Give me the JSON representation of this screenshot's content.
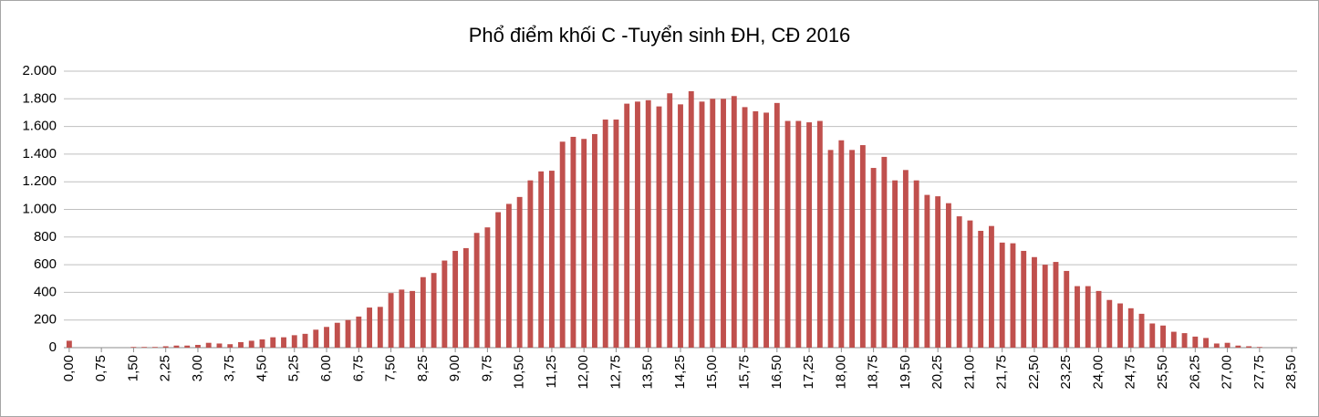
{
  "chart_data": {
    "type": "bar",
    "title": "Phổ điểm khối C -Tuyển sinh ĐH, CĐ 2016",
    "color": "#c0504d",
    "grid": true,
    "ylim": [
      0,
      2000
    ],
    "yticks": [
      0,
      200,
      400,
      600,
      800,
      {
        "value": 1000,
        "label": "1.000"
      },
      {
        "value": 1200,
        "label": "1.200"
      },
      {
        "value": 1400,
        "label": "1.400"
      },
      {
        "value": 1600,
        "label": "1.600"
      },
      {
        "value": 1800,
        "label": "1.800"
      },
      {
        "value": 2000,
        "label": "2.000"
      }
    ],
    "categories": [
      "0,00",
      null,
      null,
      "0,75",
      null,
      null,
      "1,50",
      null,
      null,
      "2,25",
      null,
      null,
      "3,00",
      null,
      null,
      "3,75",
      null,
      null,
      "4,50",
      null,
      null,
      "5,25",
      null,
      null,
      "6,00",
      null,
      null,
      "6,75",
      null,
      null,
      "7,50",
      null,
      null,
      "8,25",
      null,
      null,
      "9,00",
      null,
      null,
      "9,75",
      null,
      null,
      "10,50",
      null,
      null,
      "11,25",
      null,
      null,
      "12,00",
      null,
      null,
      "12,75",
      null,
      null,
      "13,50",
      null,
      null,
      "14,25",
      null,
      null,
      "15,00",
      null,
      null,
      "15,75",
      null,
      null,
      "16,50",
      null,
      null,
      "17,25",
      null,
      null,
      "18,00",
      null,
      null,
      "18,75",
      null,
      null,
      "19,50",
      null,
      null,
      "20,25",
      null,
      null,
      "21,00",
      null,
      null,
      "21,75",
      null,
      null,
      "22,50",
      null,
      null,
      "23,25",
      null,
      null,
      "24,00",
      null,
      null,
      "24,75",
      null,
      null,
      "25,50",
      null,
      null,
      "26,25",
      null,
      null,
      "27,00",
      null,
      null,
      "27,75",
      null,
      null,
      "28,50"
    ],
    "values": [
      50,
      0,
      0,
      0,
      0,
      0,
      5,
      5,
      5,
      10,
      15,
      15,
      20,
      35,
      30,
      25,
      40,
      50,
      60,
      75,
      75,
      90,
      100,
      130,
      150,
      180,
      200,
      225,
      290,
      295,
      395,
      420,
      410,
      510,
      540,
      630,
      700,
      720,
      830,
      870,
      980,
      1040,
      1090,
      1210,
      1275,
      1280,
      1490,
      1525,
      1510,
      1545,
      1650,
      1650,
      1765,
      1780,
      1790,
      1745,
      1840,
      1760,
      1855,
      1780,
      1800,
      1800,
      1820,
      1740,
      1710,
      1700,
      1770,
      1640,
      1640,
      1630,
      1640,
      1430,
      1500,
      1430,
      1465,
      1300,
      1380,
      1210,
      1285,
      1210,
      1105,
      1095,
      1045,
      950,
      920,
      845,
      880,
      760,
      755,
      700,
      655,
      600,
      620,
      555,
      445,
      445,
      410,
      345,
      320,
      285,
      245,
      175,
      160,
      115,
      105,
      80,
      70,
      30,
      35,
      15,
      10,
      5,
      0,
      0,
      0
    ]
  }
}
